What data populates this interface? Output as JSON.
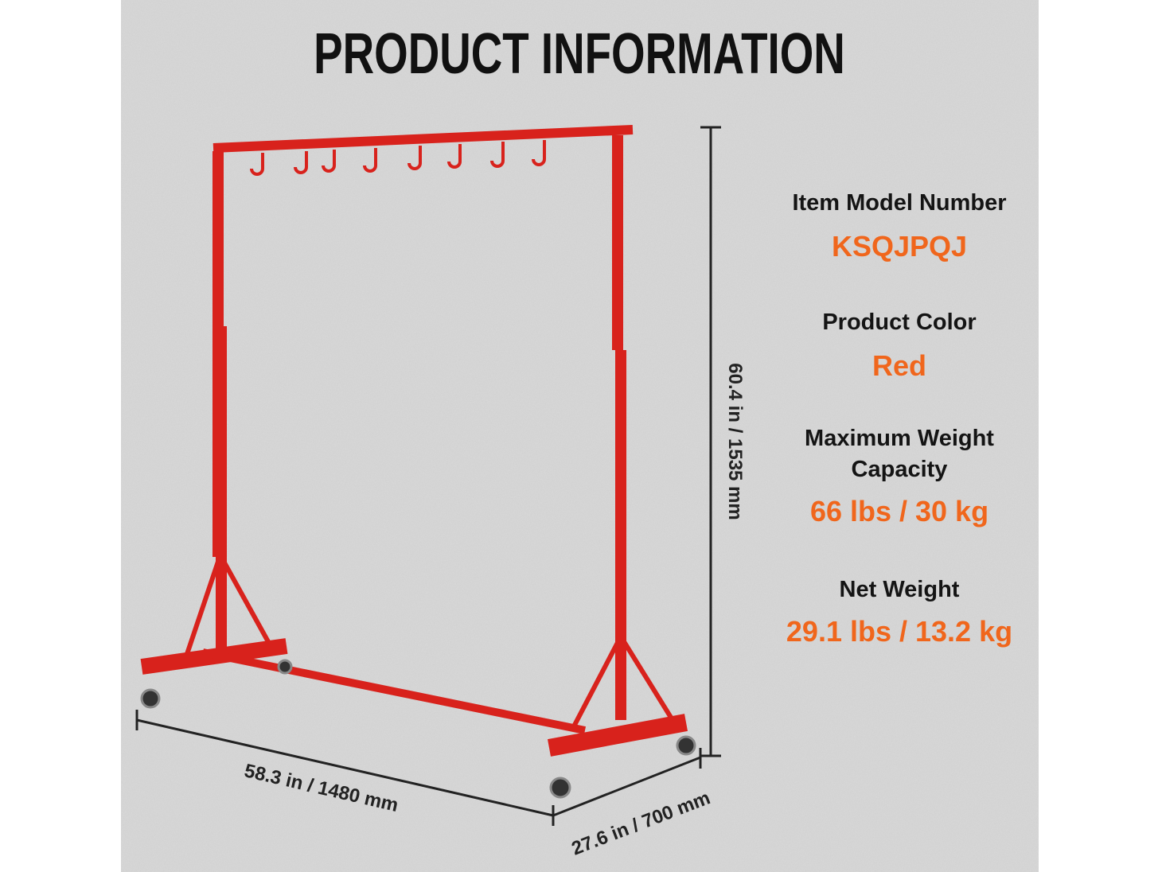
{
  "header": {
    "title": "PRODUCT INFORMATION"
  },
  "dimensions": {
    "height": "60.4 in / 1535 mm",
    "width": "58.3 in / 1480 mm",
    "depth": "27.6 in / 700 mm"
  },
  "specs": [
    {
      "label": "Item Model Number",
      "value": "KSQJPQJ"
    },
    {
      "label": "Product Color",
      "value": "Red"
    },
    {
      "label": "Maximum Weight Capacity",
      "value": "66 lbs / 30 kg"
    },
    {
      "label": "Net Weight",
      "value": "29.1 lbs / 13.2 kg"
    }
  ]
}
